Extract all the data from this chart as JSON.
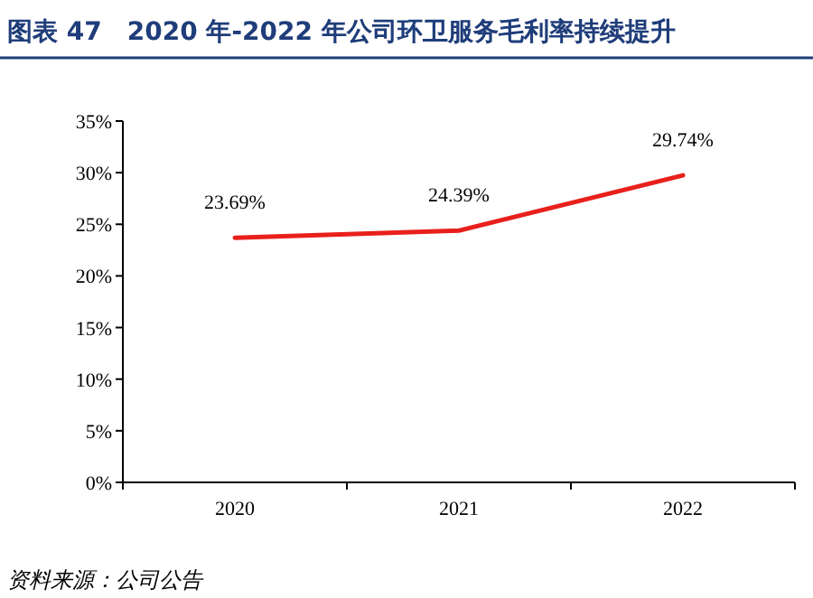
{
  "chart_data": {
    "type": "line",
    "title": "图表 47　2020 年-2022 年公司环卫服务毛利率持续提升",
    "categories": [
      "2020",
      "2021",
      "2022"
    ],
    "series": [
      {
        "color": "#e8201c",
        "values": [
          23.69,
          24.39,
          29.74
        ],
        "value_labels": [
          "23.69%",
          "24.39%",
          "29.74%"
        ]
      }
    ],
    "ylim": [
      0,
      35
    ],
    "yticks": [
      {
        "value": 0,
        "label": "0%"
      },
      {
        "value": 5,
        "label": "5%"
      },
      {
        "value": 10,
        "label": "10%"
      },
      {
        "value": 15,
        "label": "15%"
      },
      {
        "value": 20,
        "label": "20%"
      },
      {
        "value": 25,
        "label": "25%"
      },
      {
        "value": 30,
        "label": "30%"
      },
      {
        "value": 35,
        "label": "35%"
      }
    ],
    "annotations": [
      "资料来源：公司公告"
    ]
  }
}
